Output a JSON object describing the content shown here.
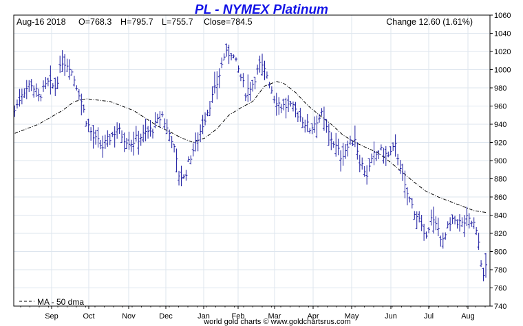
{
  "chart_data": {
    "type": "bar",
    "title": "PL  -  NYMEX Platinum",
    "header": {
      "date": "Aug-16  2018",
      "open": "O=768.3",
      "high": "H=795.7",
      "low": "L=755.7",
      "close": "Close=784.5",
      "change": "Change 12.60 (1.61%)"
    },
    "y_ticks": [
      "740",
      "760",
      "780",
      "800",
      "820",
      "840",
      "860",
      "880",
      "900",
      "920",
      "940",
      "960",
      "980",
      "1000",
      "1020",
      "1040",
      "1060"
    ],
    "ylim": [
      740,
      1060
    ],
    "x_ticks": [
      "Sep",
      "Oct",
      "Nov",
      "Dec",
      "Jan",
      "Feb",
      "Mar",
      "Apr",
      "May",
      "Jun",
      "Jul",
      "Aug"
    ],
    "legend": "MA - 50 dma",
    "footer": "world gold charts © www.goldchartsrus.com",
    "colors": {
      "price": "#1a1aa0",
      "ma": "#000000",
      "grid": "#dde5ee",
      "title": "#1414e6"
    },
    "grid": true,
    "price_keys": [
      [
        0,
        955
      ],
      [
        3,
        975
      ],
      [
        7,
        985
      ],
      [
        10,
        970
      ],
      [
        14,
        985
      ],
      [
        17,
        980
      ],
      [
        20,
        1010
      ],
      [
        23,
        1005
      ],
      [
        27,
        975
      ],
      [
        30,
        945
      ],
      [
        33,
        925
      ],
      [
        37,
        915
      ],
      [
        40,
        925
      ],
      [
        43,
        935
      ],
      [
        46,
        925
      ],
      [
        49,
        920
      ],
      [
        52,
        925
      ],
      [
        55,
        930
      ],
      [
        58,
        935
      ],
      [
        62,
        950
      ],
      [
        64,
        935
      ],
      [
        66,
        925
      ],
      [
        69,
        885
      ],
      [
        71,
        880
      ],
      [
        74,
        905
      ],
      [
        77,
        925
      ],
      [
        81,
        955
      ],
      [
        85,
        985
      ],
      [
        88,
        1015
      ],
      [
        91,
        1020
      ],
      [
        94,
        1000
      ],
      [
        97,
        975
      ],
      [
        100,
        985
      ],
      [
        103,
        1005
      ],
      [
        106,
        995
      ],
      [
        109,
        970
      ],
      [
        112,
        960
      ],
      [
        115,
        960
      ],
      [
        118,
        955
      ],
      [
        121,
        945
      ],
      [
        124,
        935
      ],
      [
        127,
        945
      ],
      [
        129,
        950
      ],
      [
        131,
        935
      ],
      [
        134,
        920
      ],
      [
        137,
        905
      ],
      [
        140,
        915
      ],
      [
        143,
        925
      ],
      [
        145,
        900
      ],
      [
        148,
        885
      ],
      [
        151,
        905
      ],
      [
        154,
        910
      ],
      [
        157,
        905
      ],
      [
        160,
        915
      ],
      [
        162,
        895
      ],
      [
        164,
        870
      ],
      [
        167,
        850
      ],
      [
        170,
        835
      ],
      [
        172,
        815
      ],
      [
        175,
        835
      ],
      [
        178,
        825
      ],
      [
        180,
        810
      ],
      [
        182,
        825
      ],
      [
        185,
        835
      ],
      [
        188,
        830
      ],
      [
        190,
        835
      ],
      [
        193,
        830
      ],
      [
        195,
        810
      ],
      [
        196,
        790
      ],
      [
        197,
        770
      ],
      [
        198,
        784.5
      ]
    ],
    "ma_keys": [
      [
        0,
        930
      ],
      [
        10,
        940
      ],
      [
        20,
        955
      ],
      [
        25,
        965
      ],
      [
        30,
        968
      ],
      [
        40,
        965
      ],
      [
        50,
        955
      ],
      [
        60,
        938
      ],
      [
        65,
        932
      ],
      [
        70,
        925
      ],
      [
        75,
        920
      ],
      [
        80,
        925
      ],
      [
        85,
        935
      ],
      [
        90,
        950
      ],
      [
        95,
        958
      ],
      [
        100,
        965
      ],
      [
        105,
        982
      ],
      [
        110,
        987
      ],
      [
        113,
        985
      ],
      [
        118,
        975
      ],
      [
        123,
        961
      ],
      [
        128,
        950
      ],
      [
        133,
        940
      ],
      [
        138,
        928
      ],
      [
        143,
        920
      ],
      [
        148,
        914
      ],
      [
        153,
        908
      ],
      [
        158,
        898
      ],
      [
        163,
        887
      ],
      [
        168,
        876
      ],
      [
        173,
        866
      ],
      [
        178,
        860
      ],
      [
        183,
        855
      ],
      [
        188,
        850
      ],
      [
        193,
        845
      ],
      [
        198,
        843
      ]
    ]
  }
}
